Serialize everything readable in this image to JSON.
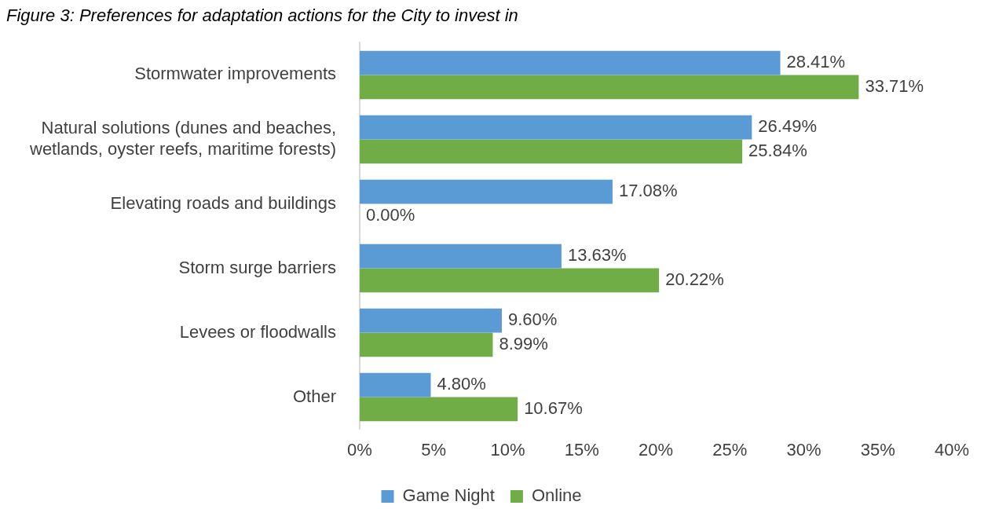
{
  "chart_data": {
    "type": "bar",
    "orientation": "horizontal",
    "title": "Figure 3: Preferences for adaptation actions for the City to invest in",
    "categories": [
      "Stormwater improvements",
      "Natural solutions (dunes and beaches, wetlands, oyster reefs, maritime forests)",
      "Elevating roads and buildings",
      "Storm surge barriers",
      "Levees or floodwalls",
      "Other"
    ],
    "series": [
      {
        "name": "Game Night",
        "color": "#5b9bd5",
        "values": [
          28.41,
          26.49,
          17.08,
          13.63,
          9.6,
          4.8
        ],
        "value_labels": [
          "28.41%",
          "26.49%",
          "17.08%",
          "13.63%",
          "9.60%",
          "4.80%"
        ]
      },
      {
        "name": "Online",
        "color": "#70ad47",
        "values": [
          33.71,
          25.84,
          0,
          20.22,
          8.99,
          10.67
        ],
        "value_labels": [
          "33.71%",
          "25.84%",
          "0.00%",
          "20.22%",
          "8.99%",
          "10.67%"
        ]
      }
    ],
    "xlim": [
      0,
      40
    ],
    "xticks": [
      {
        "value": 0,
        "label": "0%"
      },
      {
        "value": 5,
        "label": "5%"
      },
      {
        "value": 10,
        "label": "10%"
      },
      {
        "value": 15,
        "label": "15%"
      },
      {
        "value": 20,
        "label": "20%"
      },
      {
        "value": 25,
        "label": "25%"
      },
      {
        "value": 30,
        "label": "30%"
      },
      {
        "value": 35,
        "label": "35%"
      },
      {
        "value": 40,
        "label": "40%"
      }
    ],
    "grid": false,
    "legend": "bottom"
  }
}
